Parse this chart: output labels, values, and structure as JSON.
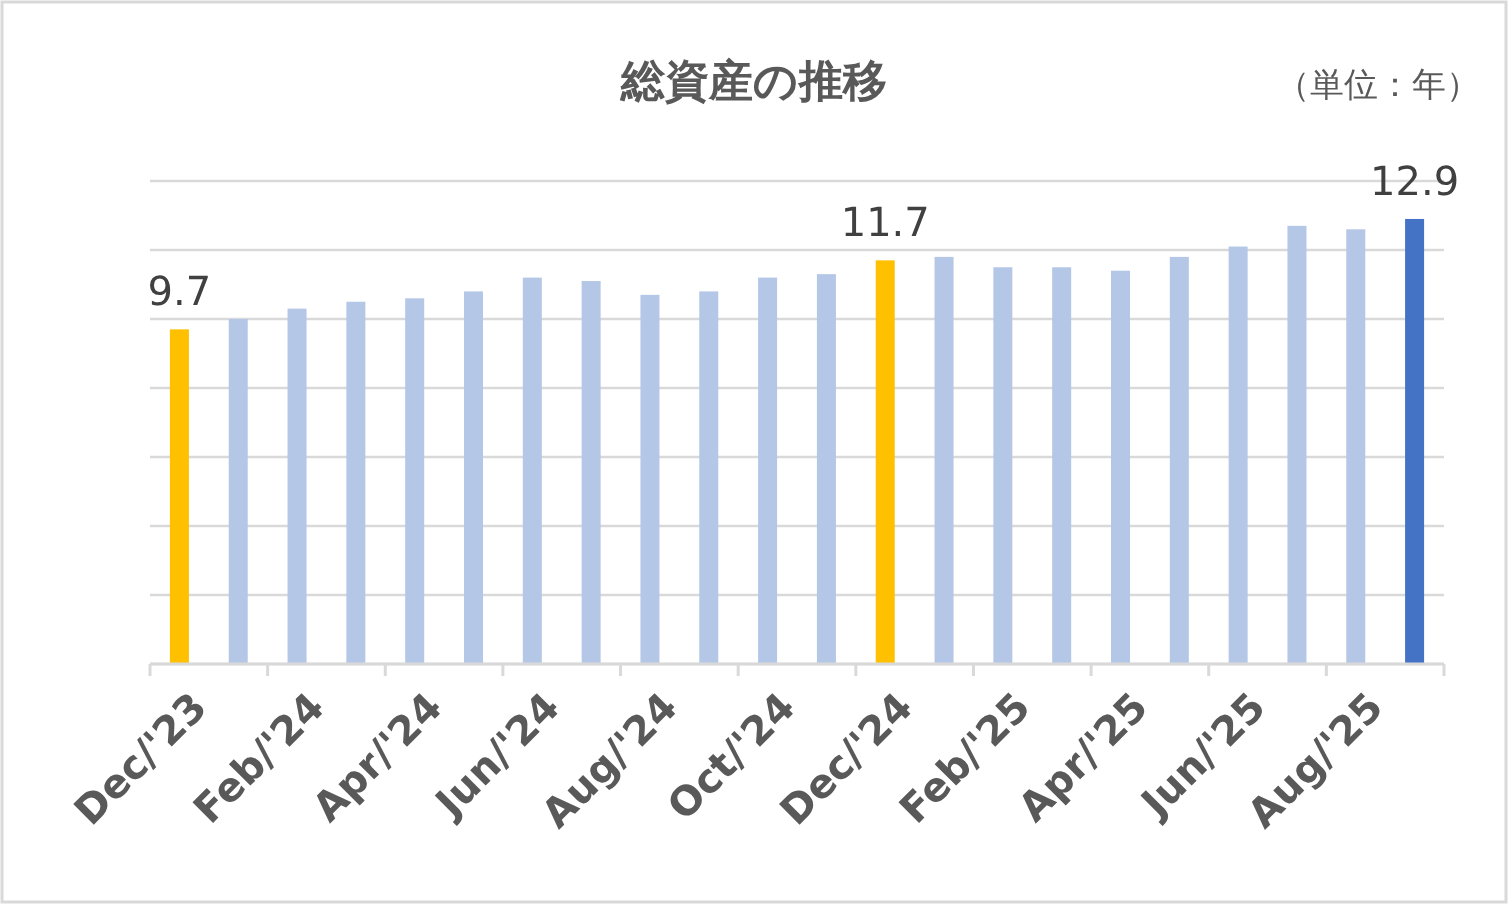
{
  "chart_data": {
    "type": "bar",
    "title": "総資産の推移",
    "annotations": [
      "（単位：年）"
    ],
    "categories": [
      "Dec/'23",
      null,
      "Feb/'24",
      null,
      "Apr/'24",
      null,
      "Jun/'24",
      null,
      "Aug/'24",
      null,
      "Oct/'24",
      null,
      "Dec/'24",
      null,
      "Feb/'25",
      null,
      "Apr/'25",
      null,
      "Jun/'25",
      null,
      "Aug/'25",
      null
    ],
    "values": [
      9.7,
      10.0,
      10.3,
      10.5,
      10.6,
      10.8,
      11.2,
      11.1,
      10.7,
      10.8,
      11.2,
      11.3,
      11.7,
      11.8,
      11.5,
      11.5,
      11.4,
      11.8,
      12.1,
      12.7,
      12.6,
      12.9
    ],
    "colors": [
      "#ffc000",
      "#b4c7e7",
      "#b4c7e7",
      "#b4c7e7",
      "#b4c7e7",
      "#b4c7e7",
      "#b4c7e7",
      "#b4c7e7",
      "#b4c7e7",
      "#b4c7e7",
      "#b4c7e7",
      "#b4c7e7",
      "#ffc000",
      "#b4c7e7",
      "#b4c7e7",
      "#b4c7e7",
      "#b4c7e7",
      "#b4c7e7",
      "#b4c7e7",
      "#b4c7e7",
      "#b4c7e7",
      "#4472c4"
    ],
    "value_labels": [
      "9.7",
      null,
      null,
      null,
      null,
      null,
      null,
      null,
      null,
      null,
      null,
      null,
      "11.7",
      null,
      null,
      null,
      null,
      null,
      null,
      null,
      null,
      "12.9"
    ],
    "ylim": [
      0,
      14
    ],
    "yticks": [
      {
        "value": 0,
        "label": null
      },
      {
        "value": 2,
        "label": null
      },
      {
        "value": 4,
        "label": null
      },
      {
        "value": 6,
        "label": null
      },
      {
        "value": 8,
        "label": null
      },
      {
        "value": 10,
        "label": null
      },
      {
        "value": 12,
        "label": null
      },
      {
        "value": 14,
        "label": null
      }
    ],
    "grid": "y"
  }
}
